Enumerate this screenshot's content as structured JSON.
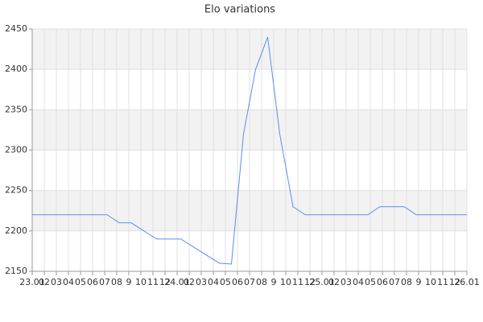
{
  "chart_data": {
    "type": "line",
    "title": "Elo variations",
    "x": [
      0,
      6.2,
      7.2,
      8.2,
      10.3,
      12.3,
      15.5,
      16.5,
      17.5,
      18.5,
      19.5,
      20.5,
      21.6,
      22.6,
      27.8,
      28.8,
      30.8,
      31.8,
      36
    ],
    "series": [
      {
        "name": "Elo",
        "color": "#5b8def",
        "values": [
          2220,
          2220,
          2210,
          2210,
          2190,
          2190,
          2160,
          2159,
          2320,
          2400,
          2440,
          2320,
          2230,
          2220,
          2220,
          2230,
          2230,
          2220,
          2220
        ]
      }
    ],
    "xlim": [
      0,
      36
    ],
    "xticks": [
      {
        "value": 0,
        "label": "23.01"
      },
      {
        "value": 1,
        "label": "02"
      },
      {
        "value": 2,
        "label": "03"
      },
      {
        "value": 3,
        "label": "04"
      },
      {
        "value": 4,
        "label": "05"
      },
      {
        "value": 5,
        "label": "06"
      },
      {
        "value": 6,
        "label": "07"
      },
      {
        "value": 7,
        "label": "08"
      },
      {
        "value": 8,
        "label": "9"
      },
      {
        "value": 9,
        "label": "10"
      },
      {
        "value": 10,
        "label": "11"
      },
      {
        "value": 11,
        "label": "12"
      },
      {
        "value": 12,
        "label": "24.01"
      },
      {
        "value": 13,
        "label": "02"
      },
      {
        "value": 14,
        "label": "03"
      },
      {
        "value": 15,
        "label": "04"
      },
      {
        "value": 16,
        "label": "05"
      },
      {
        "value": 17,
        "label": "06"
      },
      {
        "value": 18,
        "label": "07"
      },
      {
        "value": 19,
        "label": "08"
      },
      {
        "value": 20,
        "label": "9"
      },
      {
        "value": 21,
        "label": "10"
      },
      {
        "value": 22,
        "label": "11"
      },
      {
        "value": 23,
        "label": "12"
      },
      {
        "value": 24,
        "label": "25.01"
      },
      {
        "value": 25,
        "label": "02"
      },
      {
        "value": 26,
        "label": "03"
      },
      {
        "value": 27,
        "label": "04"
      },
      {
        "value": 28,
        "label": "05"
      },
      {
        "value": 29,
        "label": "06"
      },
      {
        "value": 30,
        "label": "07"
      },
      {
        "value": 31,
        "label": "08"
      },
      {
        "value": 32,
        "label": "9"
      },
      {
        "value": 33,
        "label": "10"
      },
      {
        "value": 34,
        "label": "11"
      },
      {
        "value": 35,
        "label": "12"
      },
      {
        "value": 36,
        "label": "26.01"
      }
    ],
    "ylim": [
      2150,
      2450
    ],
    "yticks": [
      2150,
      2200,
      2250,
      2300,
      2350,
      2400,
      2450
    ],
    "grid": true,
    "bands": true
  }
}
